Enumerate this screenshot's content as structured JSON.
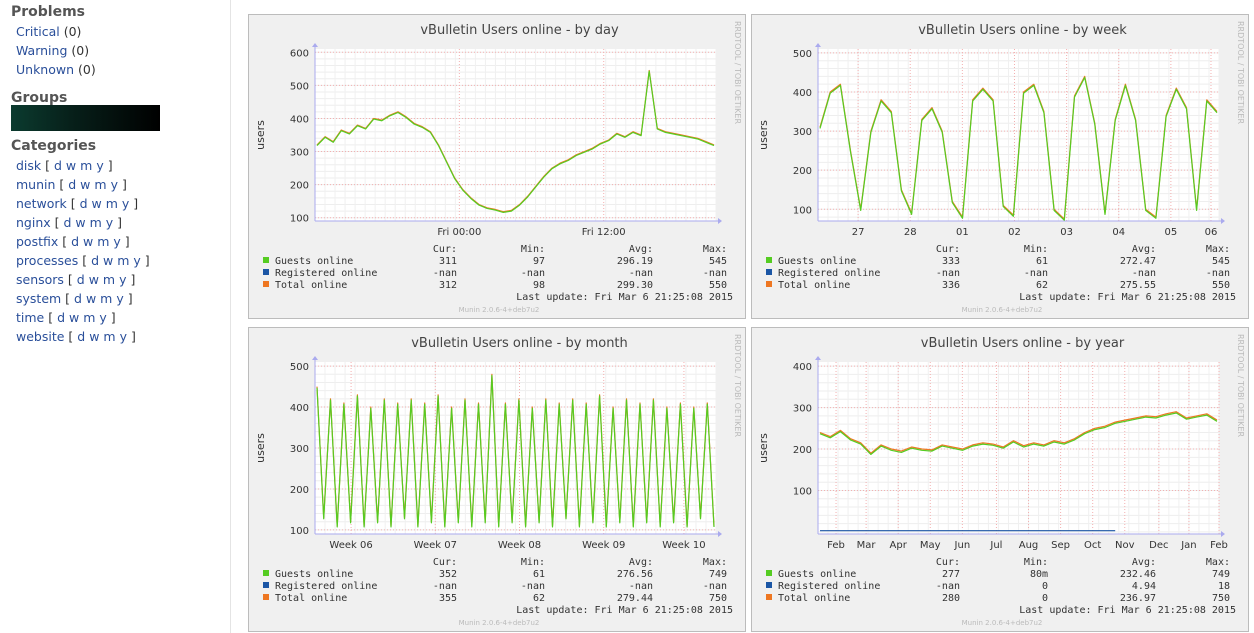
{
  "sidebar": {
    "problems_title": "Problems",
    "problems": [
      {
        "label": "Critical",
        "count": "(0)"
      },
      {
        "label": "Warning",
        "count": "(0)"
      },
      {
        "label": "Unknown",
        "count": "(0)"
      }
    ],
    "groups_title": "Groups",
    "categories_title": "Categories",
    "categories": [
      {
        "name": "disk"
      },
      {
        "name": "munin"
      },
      {
        "name": "network"
      },
      {
        "name": "nginx"
      },
      {
        "name": "postfix"
      },
      {
        "name": "processes"
      },
      {
        "name": "sensors"
      },
      {
        "name": "system"
      },
      {
        "name": "time"
      },
      {
        "name": "website"
      }
    ],
    "period_links": [
      "d",
      "w",
      "m",
      "y"
    ]
  },
  "legend_columns": [
    "Cur:",
    "Min:",
    "Avg:",
    "Max:"
  ],
  "legend_colors": {
    "Guests online": "#55cc22",
    "Registered online": "#1b56a5",
    "Total online": "#ee7722"
  },
  "rrdtool_label": "RRDTOOL / TOBI OETIKER",
  "munin_version": "Munin 2.0.6-4+deb7u2",
  "chart_data": [
    {
      "type": "line",
      "title": "vBulletin Users online - by day",
      "ylabel": "users",
      "ylim": [
        90,
        610
      ],
      "yticks": [
        100,
        200,
        300,
        400,
        500,
        600
      ],
      "xticks": [
        "Fri 00:00",
        "Fri 12:00"
      ],
      "xtick_pos": [
        0.36,
        0.72
      ],
      "series": [
        {
          "name": "Total online",
          "color": "#ee7722",
          "values": [
            320,
            345,
            330,
            365,
            355,
            380,
            370,
            400,
            395,
            410,
            420,
            405,
            385,
            375,
            360,
            320,
            270,
            220,
            185,
            160,
            140,
            130,
            125,
            118,
            122,
            140,
            165,
            195,
            225,
            250,
            265,
            275,
            290,
            300,
            310,
            325,
            335,
            355,
            345,
            360,
            350,
            545,
            370,
            360,
            355,
            350,
            345,
            340,
            330,
            320
          ]
        },
        {
          "name": "Guests online",
          "color": "#55cc22",
          "values": [
            318,
            343,
            328,
            363,
            353,
            378,
            368,
            398,
            393,
            408,
            418,
            403,
            383,
            373,
            358,
            318,
            268,
            218,
            183,
            158,
            138,
            128,
            123,
            116,
            120,
            138,
            163,
            193,
            223,
            248,
            263,
            273,
            288,
            298,
            308,
            323,
            333,
            353,
            343,
            358,
            348,
            543,
            368,
            358,
            353,
            348,
            343,
            338,
            328,
            318
          ]
        },
        {
          "name": "Registered online",
          "color": "#1b56a5",
          "values": []
        }
      ],
      "legend_rows": [
        {
          "name": "Guests online",
          "cur": "311",
          "min": "97",
          "avg": "296.19",
          "max": "545"
        },
        {
          "name": "Registered online",
          "cur": "-nan",
          "min": "-nan",
          "avg": "-nan",
          "max": "-nan"
        },
        {
          "name": "Total online",
          "cur": "312",
          "min": "98",
          "avg": "299.30",
          "max": "550"
        }
      ],
      "last_update": "Last update: Fri Mar  6 21:25:08 2015"
    },
    {
      "type": "line",
      "title": "vBulletin Users online - by week",
      "ylabel": "users",
      "ylim": [
        70,
        510
      ],
      "yticks": [
        100,
        200,
        300,
        400,
        500
      ],
      "xticks": [
        "27",
        "28",
        "01",
        "02",
        "03",
        "04",
        "05",
        "06"
      ],
      "xtick_pos": [
        0.1,
        0.23,
        0.36,
        0.49,
        0.62,
        0.75,
        0.88,
        0.98
      ],
      "series": [
        {
          "name": "Total online",
          "color": "#ee7722",
          "values": [
            310,
            400,
            420,
            250,
            100,
            300,
            380,
            350,
            150,
            90,
            330,
            360,
            300,
            120,
            80,
            380,
            410,
            380,
            110,
            85,
            400,
            420,
            350,
            100,
            75,
            390,
            440,
            320,
            90,
            330,
            420,
            330,
            100,
            80,
            340,
            410,
            360,
            100,
            380,
            350
          ]
        },
        {
          "name": "Guests online",
          "color": "#55cc22",
          "values": [
            307,
            397,
            417,
            247,
            97,
            297,
            377,
            347,
            147,
            87,
            327,
            357,
            297,
            117,
            77,
            377,
            407,
            377,
            107,
            82,
            397,
            417,
            347,
            97,
            72,
            387,
            437,
            317,
            87,
            327,
            417,
            327,
            97,
            77,
            337,
            407,
            357,
            97,
            377,
            347
          ]
        },
        {
          "name": "Registered online",
          "color": "#1b56a5",
          "values": []
        }
      ],
      "legend_rows": [
        {
          "name": "Guests online",
          "cur": "333",
          "min": "61",
          "avg": "272.47",
          "max": "545"
        },
        {
          "name": "Registered online",
          "cur": "-nan",
          "min": "-nan",
          "avg": "-nan",
          "max": "-nan"
        },
        {
          "name": "Total online",
          "cur": "336",
          "min": "62",
          "avg": "275.55",
          "max": "550"
        }
      ],
      "last_update": "Last update: Fri Mar  6 21:25:08 2015"
    },
    {
      "type": "line",
      "title": "vBulletin Users online - by month",
      "ylabel": "users",
      "ylim": [
        90,
        510
      ],
      "yticks": [
        100,
        200,
        300,
        400,
        500
      ],
      "xticks": [
        "Week 06",
        "Week 07",
        "Week 08",
        "Week 09",
        "Week 10"
      ],
      "xtick_pos": [
        0.09,
        0.3,
        0.51,
        0.72,
        0.92
      ],
      "series": [
        {
          "name": "Total online",
          "color": "#ee7722",
          "values": [
            450,
            130,
            420,
            110,
            410,
            120,
            430,
            110,
            400,
            120,
            420,
            110,
            410,
            130,
            420,
            110,
            410,
            120,
            430,
            110,
            400,
            120,
            420,
            110,
            410,
            120,
            480,
            110,
            410,
            120,
            420,
            110,
            400,
            120,
            420,
            110,
            410,
            130,
            420,
            110,
            410,
            120,
            430,
            110,
            400,
            120,
            420,
            110,
            410,
            120,
            420,
            110,
            400,
            120,
            410,
            110,
            400,
            130,
            410,
            110
          ]
        },
        {
          "name": "Guests online",
          "color": "#55cc22",
          "values": [
            447,
            127,
            417,
            107,
            407,
            117,
            427,
            107,
            397,
            117,
            417,
            107,
            407,
            127,
            417,
            107,
            407,
            117,
            427,
            107,
            397,
            117,
            417,
            107,
            407,
            117,
            477,
            107,
            407,
            117,
            417,
            107,
            397,
            117,
            417,
            107,
            407,
            127,
            417,
            107,
            407,
            117,
            427,
            107,
            397,
            117,
            417,
            107,
            407,
            117,
            417,
            107,
            397,
            117,
            407,
            107,
            397,
            127,
            407,
            107
          ]
        },
        {
          "name": "Registered online",
          "color": "#1b56a5",
          "values": []
        }
      ],
      "legend_rows": [
        {
          "name": "Guests online",
          "cur": "352",
          "min": "61",
          "avg": "276.56",
          "max": "749"
        },
        {
          "name": "Registered online",
          "cur": "-nan",
          "min": "-nan",
          "avg": "-nan",
          "max": "-nan"
        },
        {
          "name": "Total online",
          "cur": "355",
          "min": "62",
          "avg": "279.44",
          "max": "750"
        }
      ],
      "last_update": "Last update: Fri Mar  6 21:25:08 2015"
    },
    {
      "type": "line",
      "title": "vBulletin Users online - by year",
      "ylabel": "users",
      "ylim": [
        -5,
        410
      ],
      "yticks": [
        100,
        200,
        300,
        400
      ],
      "xticks": [
        "Feb",
        "Mar",
        "Apr",
        "May",
        "Jun",
        "Jul",
        "Aug",
        "Sep",
        "Oct",
        "Nov",
        "Dec",
        "Jan",
        "Feb"
      ],
      "xtick_pos": [
        0.045,
        0.12,
        0.2,
        0.28,
        0.36,
        0.445,
        0.525,
        0.605,
        0.685,
        0.765,
        0.85,
        0.925,
        1.0
      ],
      "series": [
        {
          "name": "Total online",
          "color": "#ee7722",
          "values": [
            240,
            230,
            245,
            225,
            215,
            190,
            210,
            200,
            195,
            205,
            200,
            198,
            210,
            205,
            200,
            210,
            215,
            212,
            205,
            220,
            208,
            215,
            210,
            220,
            215,
            225,
            240,
            250,
            255,
            265,
            270,
            275,
            280,
            278,
            285,
            290,
            275,
            280,
            285,
            270
          ]
        },
        {
          "name": "Guests online",
          "color": "#55cc22",
          "values": [
            237,
            227,
            242,
            222,
            212,
            187,
            207,
            197,
            192,
            202,
            197,
            195,
            207,
            202,
            197,
            207,
            212,
            209,
            202,
            217,
            205,
            212,
            207,
            217,
            212,
            222,
            237,
            247,
            252,
            262,
            267,
            272,
            277,
            275,
            282,
            287,
            272,
            277,
            282,
            267
          ]
        },
        {
          "name": "Registered online",
          "color": "#1b56a5",
          "values": [
            3,
            3,
            3,
            3,
            3,
            3,
            3,
            3,
            3,
            3,
            3,
            3,
            3,
            3,
            3,
            3,
            3,
            3,
            3,
            3,
            3,
            3,
            3,
            3,
            3,
            3,
            3,
            3,
            3,
            3
          ]
        }
      ],
      "legend_rows": [
        {
          "name": "Guests online",
          "cur": "277",
          "min": "80m",
          "avg": "232.46",
          "max": "749"
        },
        {
          "name": "Registered online",
          "cur": "-nan",
          "min": "0",
          "avg": "4.94",
          "max": "18"
        },
        {
          "name": "Total online",
          "cur": "280",
          "min": "0",
          "avg": "236.97",
          "max": "750"
        }
      ],
      "last_update": "Last update: Fri Mar  6 21:25:08 2015"
    }
  ]
}
